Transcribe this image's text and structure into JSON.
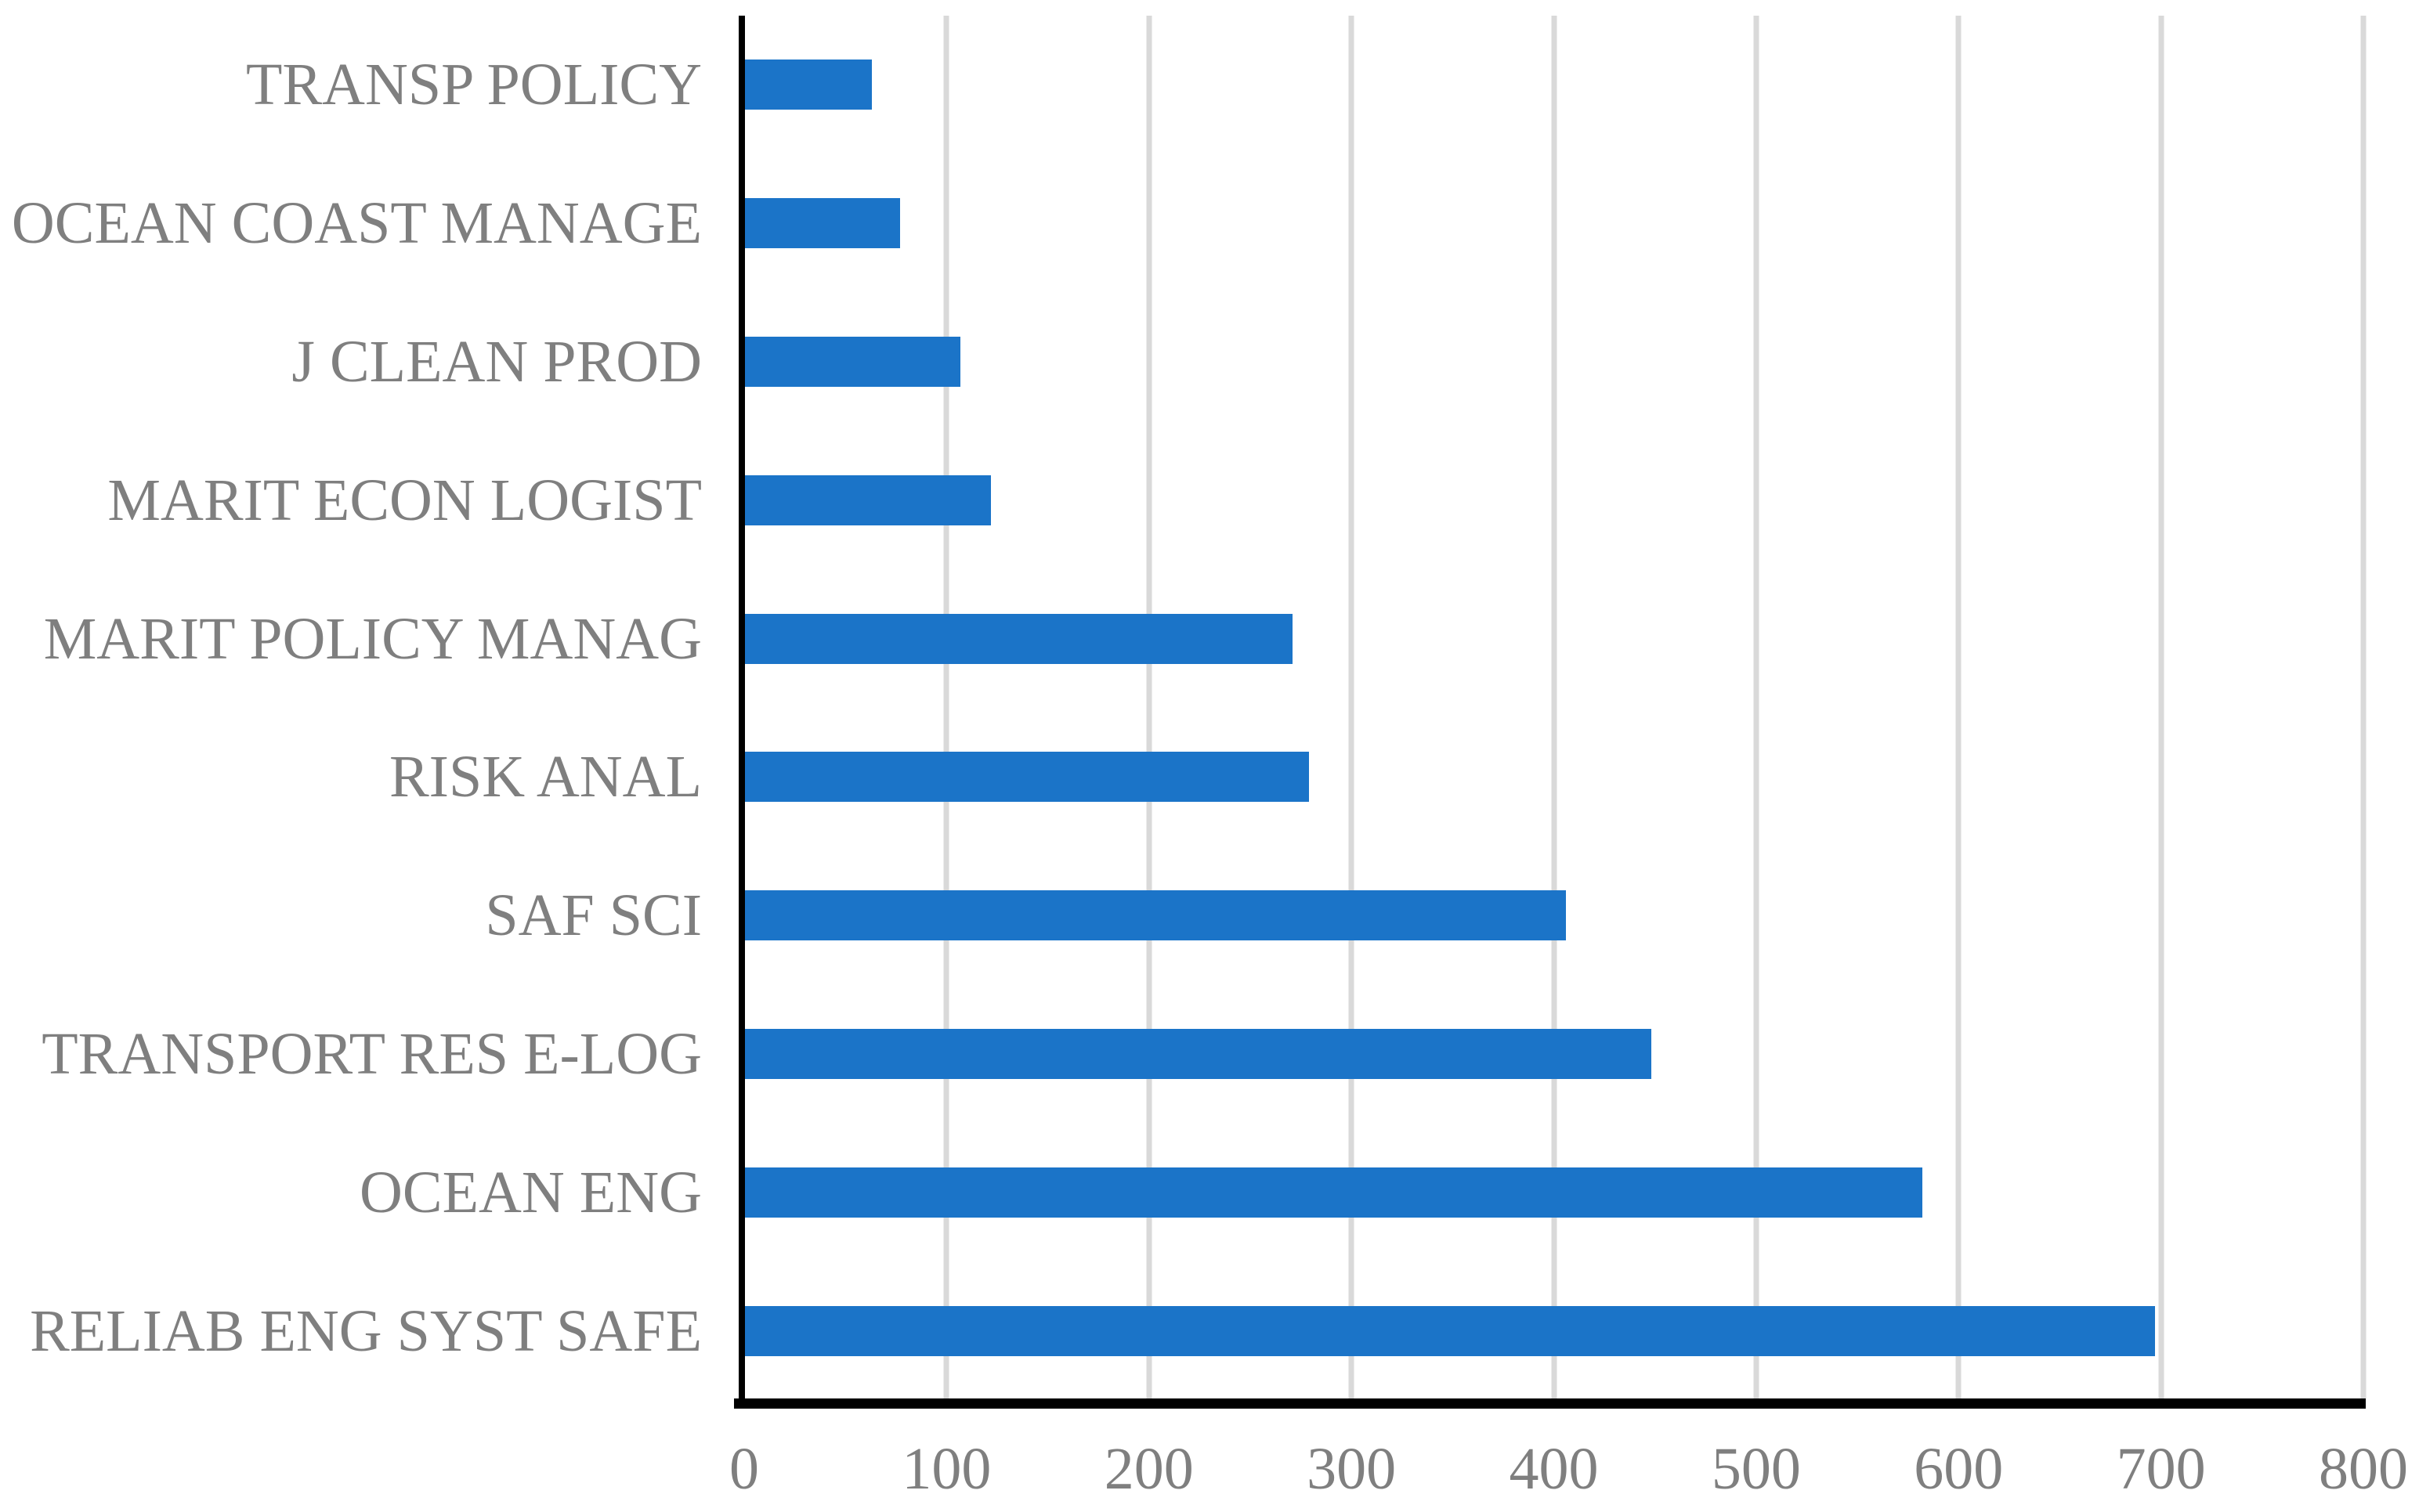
{
  "chart_data": {
    "type": "bar",
    "orientation": "horizontal",
    "title": "",
    "xlabel": "",
    "ylabel": "",
    "categories": [
      "TRANSP POLICY",
      "OCEAN COAST MANAGE",
      "J CLEAN PROD",
      "MARIT ECON LOGIST",
      "MARIT POLICY MANAG",
      "RISK ANAL",
      "SAF SCI",
      "TRANSPORT RES E-LOG",
      "OCEAN ENG",
      "RELIAB ENG SYST SAFE"
    ],
    "values": [
      63,
      77,
      107,
      122,
      271,
      279,
      406,
      448,
      582,
      697
    ],
    "xlim": [
      0,
      800
    ],
    "xticks": [
      0,
      100,
      200,
      300,
      400,
      500,
      600,
      700,
      800
    ],
    "grid": true,
    "legend": "none",
    "colors": {
      "bar": "#1b74c8",
      "gridline": "#d9d9d9",
      "axis": "#000000",
      "label_text": "#7f7f7f",
      "background": "#ffffff"
    }
  }
}
